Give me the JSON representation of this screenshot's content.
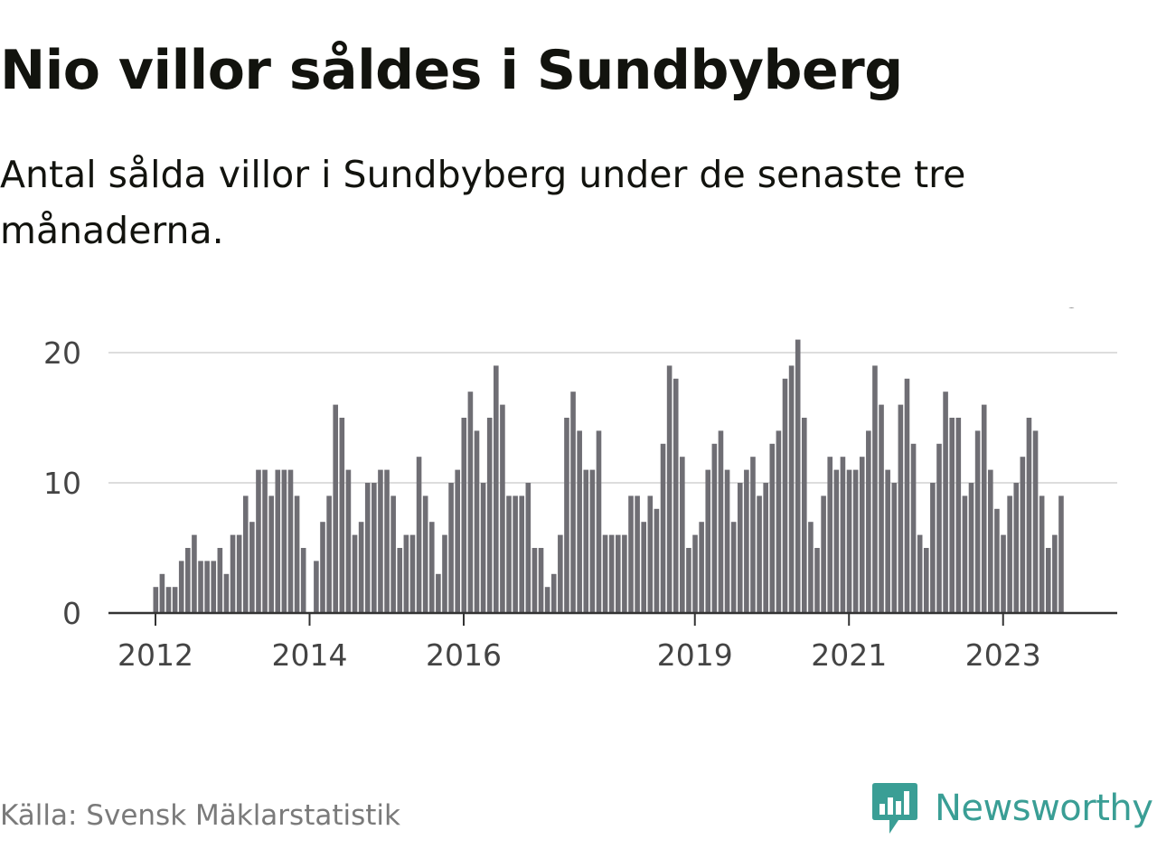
{
  "title": "Nio villor såldes i Sundbyberg",
  "subtitle": "Antal sålda villor i Sundbyberg under de senaste tre månaderna.",
  "source": "Källa: Svensk Mäklarstatistik",
  "brand": {
    "name": "Newsworthy",
    "icon": "newsworthy-logo-icon",
    "color": "#3a9e95"
  },
  "colors": {
    "bar": "#6f6e74",
    "highlight": "#1a9b93",
    "grid": "#dddddd",
    "axis": "#333333"
  },
  "chart_data": {
    "type": "bar",
    "title": "Nio villor såldes i Sundbyberg",
    "xlabel": "",
    "ylabel": "",
    "ylim": [
      0,
      21
    ],
    "yticks": [
      0,
      10,
      20
    ],
    "grid": true,
    "x_tick_labels": [
      {
        "label": "2012",
        "index": 0
      },
      {
        "label": "2014",
        "index": 24
      },
      {
        "label": "2016",
        "index": 48
      },
      {
        "label": "2019",
        "index": 84
      },
      {
        "label": "2021",
        "index": 108
      },
      {
        "label": "2023",
        "index": 132
      }
    ],
    "values": [
      2,
      3,
      2,
      2,
      4,
      5,
      6,
      4,
      4,
      4,
      5,
      3,
      6,
      6,
      9,
      7,
      11,
      11,
      9,
      11,
      11,
      11,
      9,
      5,
      0,
      4,
      7,
      9,
      16,
      15,
      11,
      6,
      7,
      10,
      10,
      11,
      11,
      9,
      5,
      6,
      6,
      12,
      9,
      7,
      3,
      6,
      10,
      11,
      15,
      17,
      14,
      10,
      15,
      19,
      16,
      9,
      9,
      9,
      10,
      5,
      5,
      2,
      3,
      6,
      15,
      17,
      14,
      11,
      11,
      14,
      6,
      6,
      6,
      6,
      9,
      9,
      7,
      9,
      8,
      13,
      19,
      18,
      12,
      5,
      6,
      7,
      11,
      13,
      14,
      11,
      7,
      10,
      11,
      12,
      9,
      10,
      13,
      14,
      18,
      19,
      21,
      15,
      7,
      5,
      9,
      12,
      11,
      12,
      11,
      11,
      12,
      14,
      19,
      16,
      11,
      10,
      16,
      18,
      13,
      6,
      5,
      10,
      13,
      17,
      15,
      15,
      9,
      10,
      14,
      16,
      11,
      8,
      6,
      9,
      10,
      12,
      15,
      14,
      9,
      5,
      6,
      9
    ],
    "highlight_index": 143,
    "highlight_label": "9"
  }
}
